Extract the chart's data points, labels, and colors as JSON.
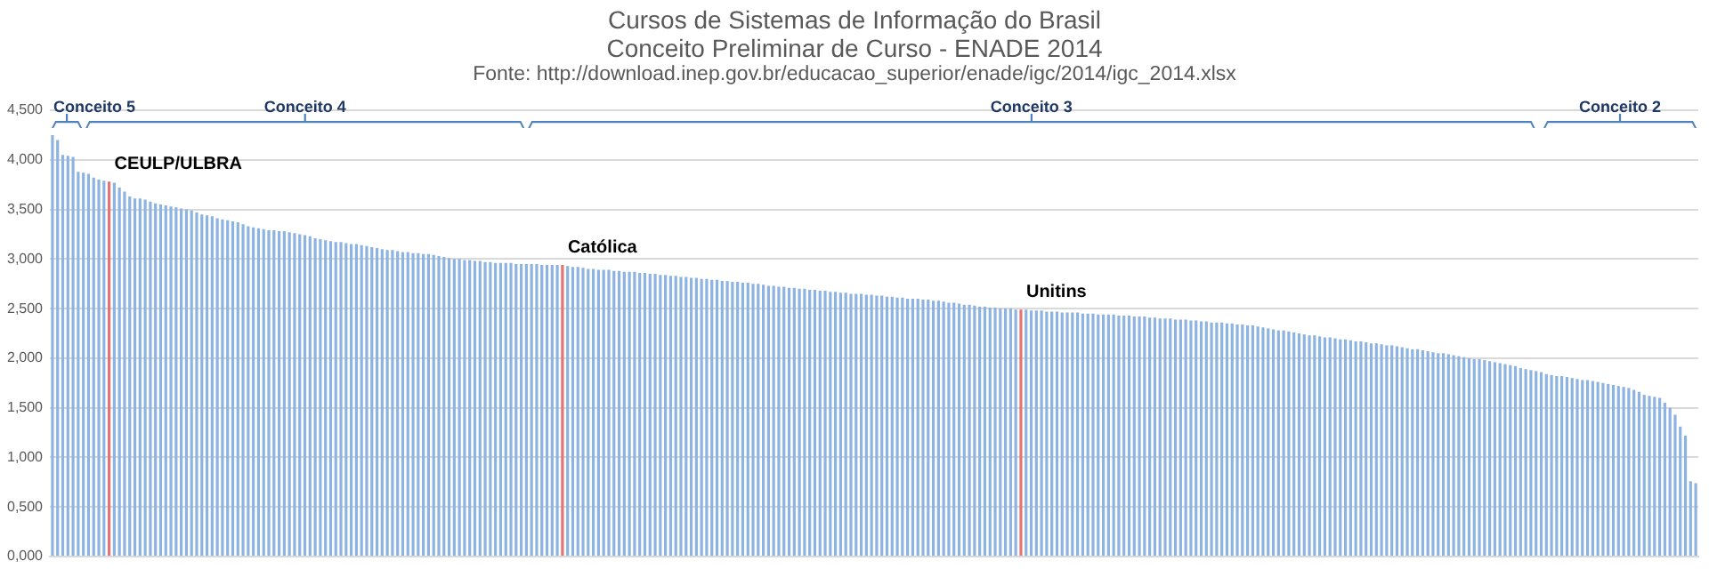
{
  "chart_data": {
    "type": "bar",
    "title": "Cursos de Sistemas de Informação do Brasil",
    "subtitle": "Conceito Preliminar de Curso - ENADE 2014",
    "annotations": [
      "Fonte: http://download.inep.gov.br/educacao_superior/enade/igc/2014/igc_2014.xlsx",
      "Conceito 5",
      "Conceito 4",
      "Conceito 3",
      "Conceito 2"
    ],
    "categories": [
      null,
      null,
      null,
      null,
      null,
      null,
      null,
      null,
      null,
      null,
      null,
      null,
      null,
      null,
      null,
      null,
      null,
      null,
      null,
      null,
      null,
      null,
      null,
      null,
      null,
      null,
      null,
      null,
      null,
      null,
      null,
      null,
      null,
      null,
      null,
      null,
      null,
      null,
      null,
      null,
      null,
      null,
      null,
      null,
      null,
      null,
      null,
      null,
      null,
      null,
      null,
      null,
      null,
      null,
      null,
      null,
      null,
      null,
      null,
      null,
      null,
      null,
      null,
      null,
      null,
      null,
      null,
      null,
      null,
      null,
      null,
      null,
      null,
      null,
      null,
      null,
      null,
      null,
      null,
      null,
      null,
      null,
      null,
      null,
      null,
      null,
      null,
      null,
      null,
      null,
      null,
      null,
      null,
      null,
      null,
      null,
      null,
      null,
      null,
      null,
      null,
      null,
      null,
      null,
      null,
      null,
      null,
      null,
      null,
      null,
      null,
      null,
      null,
      null,
      null,
      null,
      null,
      null,
      null,
      null,
      null,
      null,
      null,
      null,
      null,
      null,
      null,
      null,
      null,
      null,
      null,
      null,
      null,
      null,
      null,
      null,
      null,
      null,
      null,
      null,
      null,
      null,
      null,
      null,
      null,
      null,
      null,
      null,
      null,
      null,
      null,
      null,
      null,
      null,
      null,
      null,
      null,
      null,
      null,
      null,
      null,
      null,
      null,
      null,
      null,
      null,
      null,
      null,
      null,
      null,
      null,
      null,
      null,
      null,
      null,
      null,
      null,
      null,
      null,
      null,
      null,
      null,
      null,
      null,
      null,
      null,
      null,
      null,
      null,
      null,
      null,
      null,
      null,
      null,
      null,
      null,
      null,
      null,
      null,
      null,
      null,
      null,
      null,
      null,
      null,
      null,
      null,
      null,
      null,
      null,
      null,
      null,
      null,
      null,
      null,
      null,
      null,
      null,
      null,
      null,
      null,
      null,
      null,
      null,
      null,
      null,
      null,
      null,
      null,
      null,
      null,
      null,
      null,
      null,
      null,
      null,
      null,
      null,
      null,
      null,
      null,
      null,
      null,
      null,
      null,
      null,
      null,
      null,
      null,
      null,
      null,
      null,
      null,
      null,
      null,
      null,
      null,
      null,
      null,
      null,
      null,
      null,
      null,
      null,
      null,
      null,
      null,
      null,
      null,
      null,
      null,
      null,
      null,
      null,
      null,
      null,
      null,
      null,
      null,
      null,
      null,
      null,
      null,
      null,
      null,
      null,
      null,
      null,
      null,
      null,
      null,
      null,
      null,
      null,
      null,
      null,
      null,
      null,
      null,
      null,
      null,
      null,
      null,
      null,
      null,
      null,
      null,
      null,
      null,
      null,
      null,
      null,
      null,
      null,
      null,
      null,
      null,
      null,
      null,
      null
    ],
    "series": [
      {
        "color": "#8db3e2",
        "values": [
          4.25,
          4.2,
          4.05,
          4.04,
          4.03,
          3.88,
          3.87,
          3.86,
          3.82,
          3.8,
          3.79,
          null,
          3.77,
          3.72,
          3.68,
          3.63,
          3.61,
          3.61,
          3.6,
          3.58,
          3.56,
          3.55,
          3.54,
          3.53,
          3.52,
          3.51,
          3.5,
          3.49,
          3.47,
          3.45,
          3.44,
          3.43,
          3.41,
          3.4,
          3.39,
          3.38,
          3.37,
          3.35,
          3.33,
          3.32,
          3.31,
          3.3,
          3.29,
          3.29,
          3.28,
          3.28,
          3.27,
          3.26,
          3.25,
          3.24,
          3.23,
          3.21,
          3.2,
          3.19,
          3.18,
          3.17,
          3.17,
          3.16,
          3.15,
          3.15,
          3.14,
          3.13,
          3.12,
          3.11,
          3.1,
          3.09,
          3.09,
          3.08,
          3.07,
          3.07,
          3.06,
          3.06,
          3.05,
          3.05,
          3.04,
          3.03,
          3.02,
          3.01,
          3.0,
          3.0,
          2.99,
          2.99,
          2.98,
          2.98,
          2.97,
          2.97,
          2.96,
          2.96,
          2.96,
          2.96,
          2.95,
          2.95,
          2.95,
          2.95,
          2.95,
          2.94,
          2.94,
          2.94,
          2.94,
          null,
          2.93,
          2.92,
          2.92,
          2.91,
          2.9,
          2.9,
          2.89,
          2.89,
          2.89,
          2.88,
          2.88,
          2.87,
          2.87,
          2.87,
          2.86,
          2.86,
          2.85,
          2.85,
          2.84,
          2.84,
          2.83,
          2.83,
          2.82,
          2.82,
          2.81,
          2.81,
          2.8,
          2.8,
          2.79,
          2.79,
          2.78,
          2.78,
          2.77,
          2.77,
          2.76,
          2.76,
          2.75,
          2.75,
          2.74,
          2.73,
          2.73,
          2.72,
          2.72,
          2.71,
          2.71,
          2.7,
          2.7,
          2.69,
          2.69,
          2.68,
          2.68,
          2.67,
          2.67,
          2.66,
          2.66,
          2.65,
          2.65,
          2.65,
          2.64,
          2.64,
          2.63,
          2.63,
          2.62,
          2.62,
          2.61,
          2.61,
          2.6,
          2.6,
          2.6,
          2.59,
          2.59,
          2.58,
          2.58,
          2.57,
          2.56,
          2.56,
          2.55,
          2.54,
          2.54,
          2.53,
          2.52,
          2.52,
          2.51,
          2.51,
          2.5,
          2.5,
          2.5,
          2.49,
          null,
          2.49,
          2.48,
          2.48,
          2.48,
          2.47,
          2.47,
          2.47,
          2.46,
          2.46,
          2.46,
          2.46,
          2.45,
          2.45,
          2.45,
          2.44,
          2.44,
          2.44,
          2.44,
          2.43,
          2.43,
          2.43,
          2.42,
          2.42,
          2.42,
          2.41,
          2.41,
          2.4,
          2.4,
          2.4,
          2.39,
          2.39,
          2.39,
          2.38,
          2.38,
          2.37,
          2.37,
          2.36,
          2.36,
          2.36,
          2.35,
          2.35,
          2.34,
          2.34,
          2.33,
          2.33,
          2.32,
          2.31,
          2.3,
          2.29,
          2.28,
          2.28,
          2.27,
          2.26,
          2.25,
          2.24,
          2.23,
          2.23,
          2.22,
          2.21,
          2.21,
          2.2,
          2.19,
          2.19,
          2.18,
          2.17,
          2.17,
          2.16,
          2.15,
          2.15,
          2.14,
          2.13,
          2.13,
          2.12,
          2.11,
          2.1,
          2.09,
          2.09,
          2.08,
          2.07,
          2.06,
          2.05,
          2.05,
          2.04,
          2.03,
          2.02,
          2.01,
          2.0,
          1.99,
          1.99,
          1.98,
          1.97,
          1.96,
          1.95,
          1.94,
          1.93,
          1.92,
          1.9,
          1.89,
          1.88,
          1.87,
          1.86,
          1.84,
          1.83,
          1.82,
          1.82,
          1.81,
          1.8,
          1.79,
          1.78,
          1.78,
          1.77,
          1.76,
          1.75,
          1.74,
          1.73,
          1.72,
          1.71,
          1.7,
          1.68,
          1.66,
          1.63,
          1.62,
          1.61,
          1.6,
          1.55,
          1.5,
          1.43,
          1.31,
          1.22,
          0.76,
          0.74
        ]
      },
      {
        "name": "CEULP/ULBRA",
        "color": "#e57373",
        "values": [
          null,
          null,
          null,
          null,
          null,
          null,
          null,
          null,
          null,
          null,
          null,
          3.78,
          null,
          null,
          null,
          null,
          null,
          null,
          null,
          null,
          null,
          null,
          null,
          null,
          null,
          null,
          null,
          null,
          null,
          null,
          null,
          null,
          null,
          null,
          null,
          null,
          null,
          null,
          null,
          null,
          null,
          null,
          null,
          null,
          null,
          null,
          null,
          null,
          null,
          null,
          null,
          null,
          null,
          null,
          null,
          null,
          null,
          null,
          null,
          null,
          null,
          null,
          null,
          null,
          null,
          null,
          null,
          null,
          null,
          null,
          null,
          null,
          null,
          null,
          null,
          null,
          null,
          null,
          null,
          null,
          null,
          null,
          null,
          null,
          null,
          null,
          null,
          null,
          null,
          null,
          null,
          null,
          null,
          null,
          null,
          null,
          null,
          null,
          null,
          null,
          null,
          null,
          null,
          null,
          null,
          null,
          null,
          null,
          null,
          null,
          null,
          null,
          null,
          null,
          null,
          null,
          null,
          null,
          null,
          null,
          null,
          null,
          null,
          null,
          null,
          null,
          null,
          null,
          null,
          null,
          null,
          null,
          null,
          null,
          null,
          null,
          null,
          null,
          null,
          null,
          null,
          null,
          null,
          null,
          null,
          null,
          null,
          null,
          null,
          null,
          null,
          null,
          null,
          null,
          null,
          null,
          null,
          null,
          null,
          null,
          null,
          null,
          null,
          null,
          null,
          null,
          null,
          null,
          null,
          null,
          null,
          null,
          null,
          null,
          null,
          null,
          null,
          null,
          null,
          null,
          null,
          null,
          null,
          null,
          null,
          null,
          null,
          null,
          null,
          null,
          null,
          null,
          null,
          null,
          null,
          null,
          null,
          null,
          null,
          null,
          null,
          null,
          null,
          null,
          null,
          null,
          null,
          null,
          null,
          null,
          null,
          null,
          null,
          null,
          null,
          null,
          null,
          null,
          null,
          null,
          null,
          null,
          null,
          null,
          null,
          null,
          null,
          null,
          null,
          null,
          null,
          null,
          null,
          null,
          null,
          null,
          null,
          null,
          null,
          null,
          null,
          null,
          null,
          null,
          null,
          null,
          null,
          null,
          null,
          null,
          null,
          null,
          null,
          null,
          null,
          null,
          null,
          null,
          null,
          null,
          null,
          null,
          null,
          null,
          null,
          null,
          null,
          null,
          null,
          null,
          null,
          null,
          null,
          null,
          null,
          null,
          null,
          null,
          null,
          null,
          null,
          null,
          null,
          null,
          null,
          null,
          null,
          null,
          null,
          null,
          null,
          null,
          null,
          null,
          null,
          null,
          null,
          null,
          null,
          null,
          null,
          null,
          null,
          null,
          null,
          null,
          null,
          null,
          null,
          null,
          null,
          null,
          null,
          null,
          null,
          null,
          null,
          null,
          null,
          null
        ]
      },
      {
        "name": "Católica",
        "color": "#e57373",
        "values": [
          null,
          null,
          null,
          null,
          null,
          null,
          null,
          null,
          null,
          null,
          null,
          null,
          null,
          null,
          null,
          null,
          null,
          null,
          null,
          null,
          null,
          null,
          null,
          null,
          null,
          null,
          null,
          null,
          null,
          null,
          null,
          null,
          null,
          null,
          null,
          null,
          null,
          null,
          null,
          null,
          null,
          null,
          null,
          null,
          null,
          null,
          null,
          null,
          null,
          null,
          null,
          null,
          null,
          null,
          null,
          null,
          null,
          null,
          null,
          null,
          null,
          null,
          null,
          null,
          null,
          null,
          null,
          null,
          null,
          null,
          null,
          null,
          null,
          null,
          null,
          null,
          null,
          null,
          null,
          null,
          null,
          null,
          null,
          null,
          null,
          null,
          null,
          null,
          null,
          null,
          null,
          null,
          null,
          null,
          null,
          null,
          null,
          null,
          null,
          2.94,
          null,
          null,
          null,
          null,
          null,
          null,
          null,
          null,
          null,
          null,
          null,
          null,
          null,
          null,
          null,
          null,
          null,
          null,
          null,
          null,
          null,
          null,
          null,
          null,
          null,
          null,
          null,
          null,
          null,
          null,
          null,
          null,
          null,
          null,
          null,
          null,
          null,
          null,
          null,
          null,
          null,
          null,
          null,
          null,
          null,
          null,
          null,
          null,
          null,
          null,
          null,
          null,
          null,
          null,
          null,
          null,
          null,
          null,
          null,
          null,
          null,
          null,
          null,
          null,
          null,
          null,
          null,
          null,
          null,
          null,
          null,
          null,
          null,
          null,
          null,
          null,
          null,
          null,
          null,
          null,
          null,
          null,
          null,
          null,
          null,
          null,
          null,
          null,
          null,
          null,
          null,
          null,
          null,
          null,
          null,
          null,
          null,
          null,
          null,
          null,
          null,
          null,
          null,
          null,
          null,
          null,
          null,
          null,
          null,
          null,
          null,
          null,
          null,
          null,
          null,
          null,
          null,
          null,
          null,
          null,
          null,
          null,
          null,
          null,
          null,
          null,
          null,
          null,
          null,
          null,
          null,
          null,
          null,
          null,
          null,
          null,
          null,
          null,
          null,
          null,
          null,
          null,
          null,
          null,
          null,
          null,
          null,
          null,
          null,
          null,
          null,
          null,
          null,
          null,
          null,
          null,
          null,
          null,
          null,
          null,
          null,
          null,
          null,
          null,
          null,
          null,
          null,
          null,
          null,
          null,
          null,
          null,
          null,
          null,
          null,
          null,
          null,
          null,
          null,
          null,
          null,
          null,
          null,
          null,
          null,
          null,
          null,
          null,
          null,
          null,
          null,
          null,
          null,
          null,
          null,
          null,
          null,
          null,
          null,
          null,
          null,
          null,
          null,
          null,
          null,
          null,
          null,
          null,
          null,
          null,
          null,
          null,
          null,
          null,
          null,
          null,
          null,
          null,
          null,
          null
        ]
      },
      {
        "name": "Unitins",
        "color": "#e57373",
        "values": [
          null,
          null,
          null,
          null,
          null,
          null,
          null,
          null,
          null,
          null,
          null,
          null,
          null,
          null,
          null,
          null,
          null,
          null,
          null,
          null,
          null,
          null,
          null,
          null,
          null,
          null,
          null,
          null,
          null,
          null,
          null,
          null,
          null,
          null,
          null,
          null,
          null,
          null,
          null,
          null,
          null,
          null,
          null,
          null,
          null,
          null,
          null,
          null,
          null,
          null,
          null,
          null,
          null,
          null,
          null,
          null,
          null,
          null,
          null,
          null,
          null,
          null,
          null,
          null,
          null,
          null,
          null,
          null,
          null,
          null,
          null,
          null,
          null,
          null,
          null,
          null,
          null,
          null,
          null,
          null,
          null,
          null,
          null,
          null,
          null,
          null,
          null,
          null,
          null,
          null,
          null,
          null,
          null,
          null,
          null,
          null,
          null,
          null,
          null,
          null,
          null,
          null,
          null,
          null,
          null,
          null,
          null,
          null,
          null,
          null,
          null,
          null,
          null,
          null,
          null,
          null,
          null,
          null,
          null,
          null,
          null,
          null,
          null,
          null,
          null,
          null,
          null,
          null,
          null,
          null,
          null,
          null,
          null,
          null,
          null,
          null,
          null,
          null,
          null,
          null,
          null,
          null,
          null,
          null,
          null,
          null,
          null,
          null,
          null,
          null,
          null,
          null,
          null,
          null,
          null,
          null,
          null,
          null,
          null,
          null,
          null,
          null,
          null,
          null,
          null,
          null,
          null,
          null,
          null,
          null,
          null,
          null,
          null,
          null,
          null,
          null,
          null,
          null,
          null,
          null,
          null,
          null,
          null,
          null,
          null,
          null,
          null,
          null,
          2.49,
          null,
          null,
          null,
          null,
          null,
          null,
          null,
          null,
          null,
          null,
          null,
          null,
          null,
          null,
          null,
          null,
          null,
          null,
          null,
          null,
          null,
          null,
          null,
          null,
          null,
          null,
          null,
          null,
          null,
          null,
          null,
          null,
          null,
          null,
          null,
          null,
          null,
          null,
          null,
          null,
          null,
          null,
          null,
          null,
          null,
          null,
          null,
          null,
          null,
          null,
          null,
          null,
          null,
          null,
          null,
          null,
          null,
          null,
          null,
          null,
          null,
          null,
          null,
          null,
          null,
          null,
          null,
          null,
          null,
          null,
          null,
          null,
          null,
          null,
          null,
          null,
          null,
          null,
          null,
          null,
          null,
          null,
          null,
          null,
          null,
          null,
          null,
          null,
          null,
          null,
          null,
          null,
          null,
          null,
          null,
          null,
          null,
          null,
          null,
          null,
          null,
          null,
          null,
          null,
          null,
          null,
          null,
          null,
          null,
          null,
          null,
          null,
          null,
          null,
          null,
          null,
          null,
          null,
          null,
          null,
          null,
          null,
          null,
          null,
          null,
          null,
          null,
          null,
          null,
          null,
          null
        ]
      }
    ],
    "ylim": [
      0,
      4.5
    ],
    "yticks": [
      {
        "value": 0,
        "label": "0,000"
      },
      {
        "value": 0.5,
        "label": "0,500"
      },
      {
        "value": 1,
        "label": "1,000"
      },
      {
        "value": 1.5,
        "label": "1,500"
      },
      {
        "value": 2,
        "label": "2,000"
      },
      {
        "value": 2.5,
        "label": "2,500"
      },
      {
        "value": 3,
        "label": "3,000"
      },
      {
        "value": 3.5,
        "label": "3,500"
      },
      {
        "value": 4,
        "label": "4,000"
      },
      {
        "value": 4.5,
        "label": "4,500"
      }
    ],
    "grid": "y",
    "tick_labels": "y",
    "legend": false
  }
}
